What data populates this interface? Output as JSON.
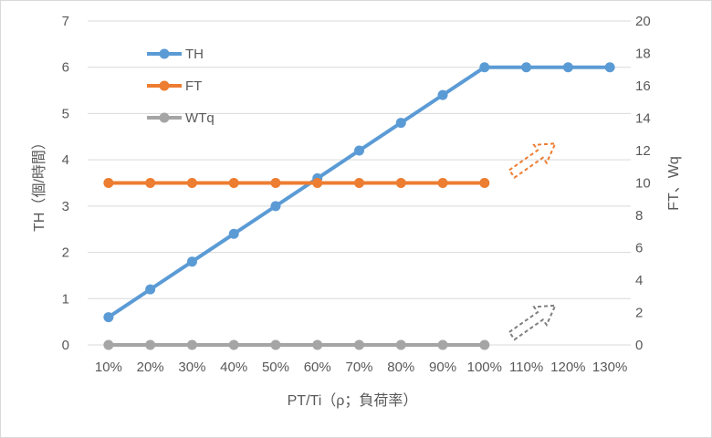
{
  "chart_data": {
    "type": "line",
    "categories": [
      "10%",
      "20%",
      "30%",
      "40%",
      "50%",
      "60%",
      "70%",
      "80%",
      "90%",
      "100%",
      "110%",
      "120%",
      "130%"
    ],
    "xlabel": "PT/Ti（ρ；負荷率）",
    "ylabel_left": "TH（個/時間）",
    "ylabel_right": "FT、Wq",
    "ylim_left": [
      0,
      7
    ],
    "yticks_left": [
      "0",
      "1",
      "2",
      "3",
      "4",
      "5",
      "6",
      "7"
    ],
    "ylim_right": [
      0,
      20
    ],
    "yticks_right": [
      "0",
      "2",
      "4",
      "6",
      "8",
      "10",
      "12",
      "14",
      "16",
      "18",
      "20"
    ],
    "grid": true,
    "legend_position": "top-left",
    "series": [
      {
        "name": "TH",
        "axis": "left",
        "color": "#5b9bd5",
        "values": [
          0.6,
          1.2,
          1.8,
          2.4,
          3.0,
          3.6,
          4.2,
          4.8,
          5.4,
          6.0,
          6.0,
          6.0,
          6.0
        ]
      },
      {
        "name": "FT",
        "axis": "left",
        "color": "#ed7d31",
        "values": [
          3.5,
          3.5,
          3.5,
          3.5,
          3.5,
          3.5,
          3.5,
          3.5,
          3.5,
          3.5,
          null,
          null,
          null
        ]
      },
      {
        "name": "WTq",
        "axis": "left",
        "color": "#a5a5a5",
        "values": [
          0,
          0,
          0,
          0,
          0,
          0,
          0,
          0,
          0,
          0,
          null,
          null,
          null
        ]
      }
    ],
    "annotations": [
      {
        "type": "dashed-arrow-up-right",
        "series": "FT",
        "color": "#ed7d31"
      },
      {
        "type": "dashed-arrow-up-right",
        "series": "WTq",
        "color": "#7f7f7f"
      }
    ]
  }
}
